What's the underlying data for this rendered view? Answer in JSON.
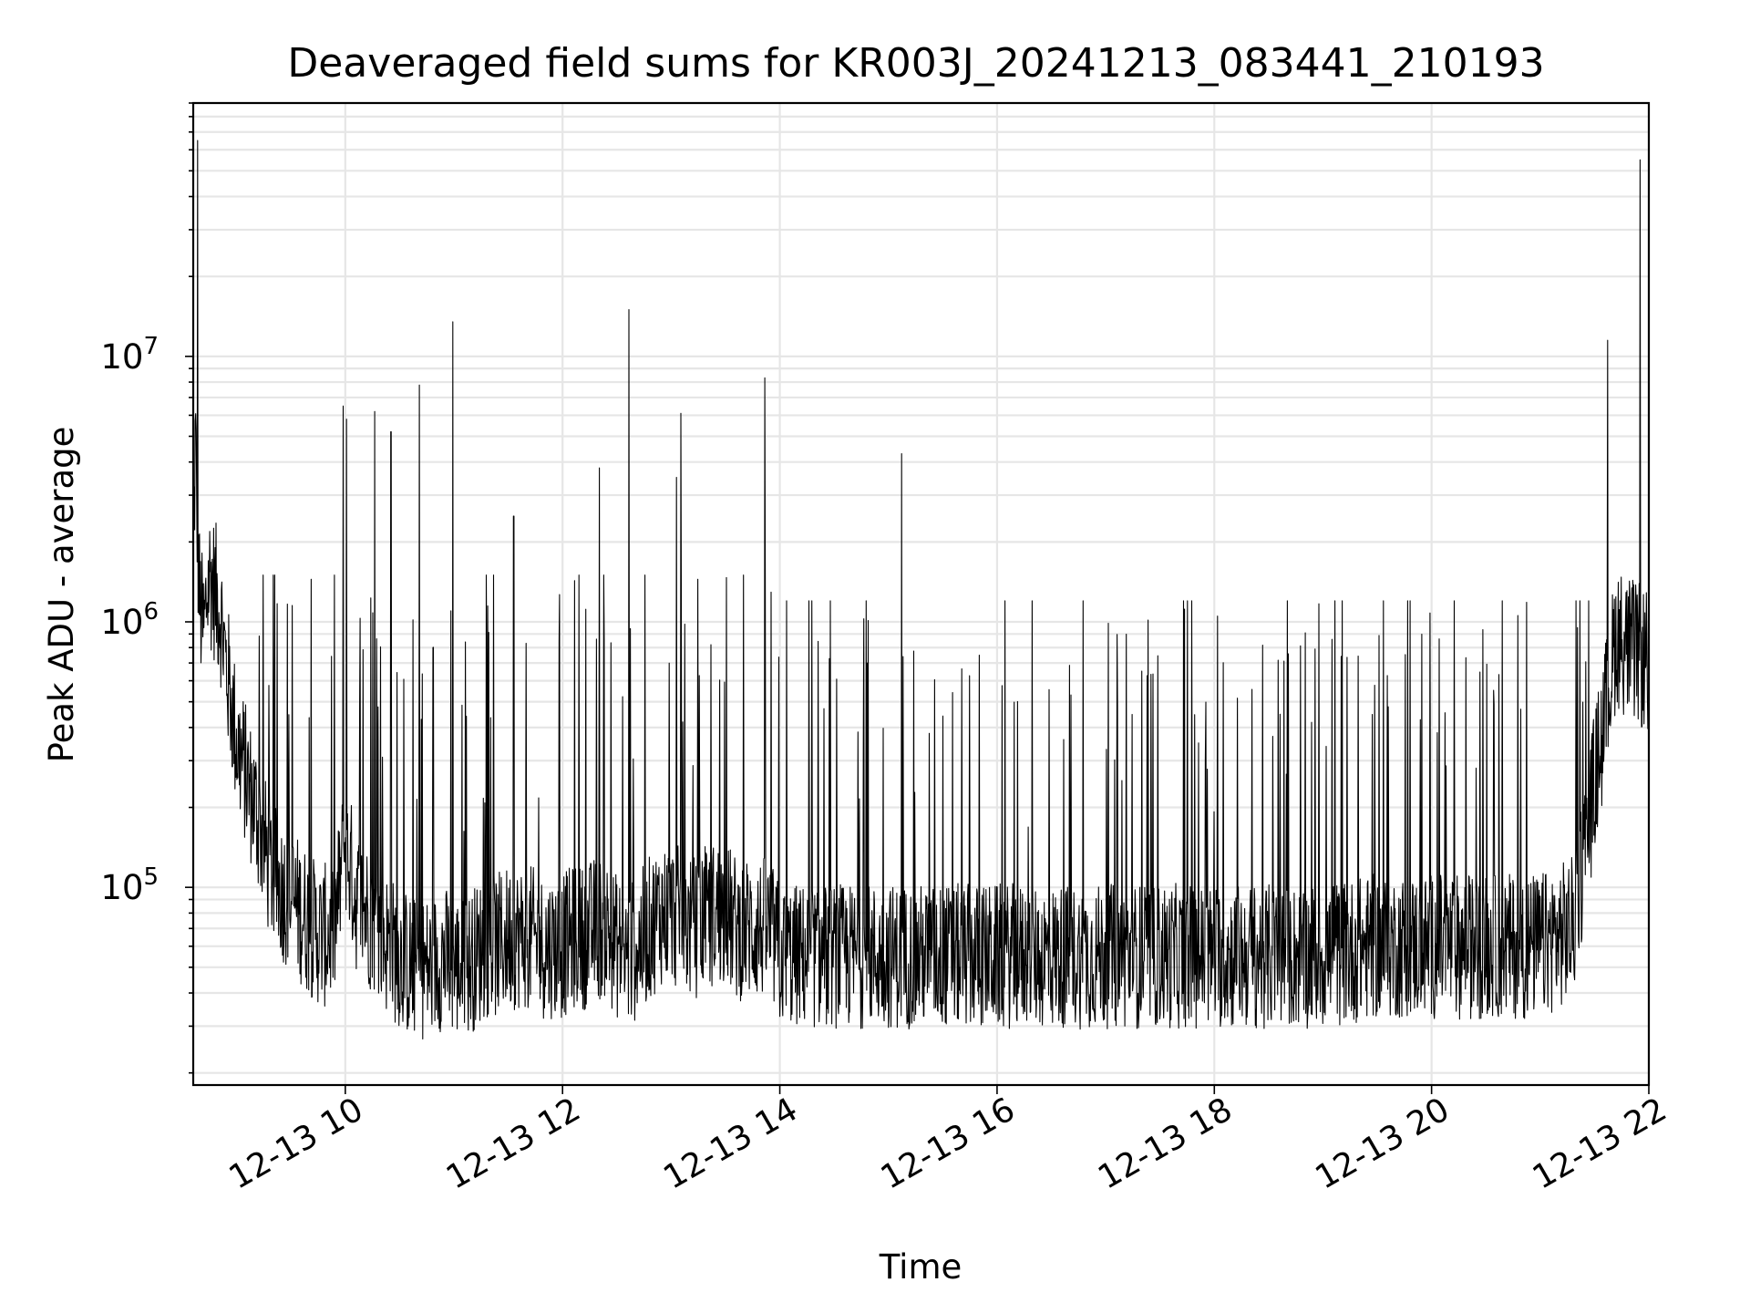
{
  "chart_data": {
    "type": "line",
    "title": "Deaveraged field sums for KR003J_20241213_083441_210193",
    "xlabel": "Time",
    "ylabel": "Peak ADU - average",
    "yscale": "log",
    "ylim": [
      18000,
      90000000
    ],
    "xlim_hours": [
      8.6,
      22.0
    ],
    "grid": true,
    "legend": "none",
    "line_color": "#000000",
    "x_ticks": [
      {
        "hour": 10,
        "label": "12-13 10"
      },
      {
        "hour": 12,
        "label": "12-13 12"
      },
      {
        "hour": 14,
        "label": "12-13 14"
      },
      {
        "hour": 16,
        "label": "12-13 16"
      },
      {
        "hour": 18,
        "label": "12-13 18"
      },
      {
        "hour": 20,
        "label": "12-13 20"
      },
      {
        "hour": 22,
        "label": "12-13 22"
      }
    ],
    "y_ticks": [
      {
        "value": 100000,
        "base": "10",
        "exp": "5"
      },
      {
        "value": 1000000,
        "base": "10",
        "exp": "6"
      },
      {
        "value": 10000000,
        "base": "10",
        "exp": "7"
      }
    ],
    "series": [
      {
        "x_hours": [
          8.6,
          8.62,
          8.64,
          8.66,
          8.68,
          8.7,
          8.72,
          8.75,
          8.8,
          8.85,
          8.9,
          8.95,
          9.0,
          9.05,
          9.1,
          9.2,
          9.3,
          9.4,
          9.5,
          9.6,
          9.7,
          9.8,
          9.9,
          10.0,
          10.1,
          10.2,
          10.3,
          10.4,
          10.5,
          10.6,
          10.7,
          10.8,
          10.9,
          11.0,
          11.1,
          11.2,
          11.3,
          11.4,
          11.5,
          11.6,
          11.7,
          11.8,
          11.9,
          12.0,
          12.1,
          12.2,
          12.3,
          12.4,
          12.5,
          12.6,
          12.7,
          12.8,
          12.9,
          13.0,
          13.1,
          13.2,
          13.3,
          13.4,
          13.5,
          13.6,
          13.7,
          13.8,
          13.9,
          14.0,
          14.2,
          14.5,
          15.0,
          15.5,
          16.0,
          16.5,
          17.0,
          17.5,
          18.0,
          18.5,
          19.0,
          19.5,
          20.0,
          20.5,
          21.0,
          21.3,
          21.4,
          21.5,
          21.6,
          21.7,
          21.8,
          21.9,
          22.0
        ],
        "y_baseline": [
          1500000,
          5000000,
          2000000,
          1200000,
          1000000,
          900000,
          1200000,
          1500000,
          1300000,
          1100000,
          700000,
          500000,
          350000,
          300000,
          250000,
          180000,
          120000,
          100000,
          90000,
          80000,
          70000,
          65000,
          70000,
          150000,
          90000,
          80000,
          70000,
          60000,
          55000,
          50000,
          50000,
          50000,
          55000,
          50000,
          50000,
          55000,
          60000,
          60000,
          65000,
          65000,
          65000,
          60000,
          60000,
          60000,
          65000,
          65000,
          70000,
          70000,
          60000,
          55000,
          60000,
          70000,
          80000,
          80000,
          75000,
          70000,
          75000,
          80000,
          80000,
          70000,
          70000,
          70000,
          70000,
          55000,
          55000,
          55000,
          55000,
          55000,
          55000,
          55000,
          55000,
          55000,
          55000,
          55000,
          55000,
          60000,
          60000,
          60000,
          60000,
          70000,
          130000,
          250000,
          450000,
          900000,
          800000,
          750000,
          700000
        ],
        "peaks": [
          {
            "hour": 8.64,
            "value": 65000000
          },
          {
            "hour": 9.98,
            "value": 6500000
          },
          {
            "hour": 10.01,
            "value": 5800000
          },
          {
            "hour": 10.27,
            "value": 6200000
          },
          {
            "hour": 10.42,
            "value": 5200000
          },
          {
            "hour": 10.68,
            "value": 7800000
          },
          {
            "hour": 10.99,
            "value": 13500000
          },
          {
            "hour": 11.55,
            "value": 2500000
          },
          {
            "hour": 12.34,
            "value": 3800000
          },
          {
            "hour": 12.61,
            "value": 15000000
          },
          {
            "hour": 13.05,
            "value": 3500000
          },
          {
            "hour": 13.09,
            "value": 6100000
          },
          {
            "hour": 13.86,
            "value": 8300000
          },
          {
            "hour": 15.12,
            "value": 4300000
          },
          {
            "hour": 21.62,
            "value": 11500000
          },
          {
            "hour": 21.92,
            "value": 55000000
          }
        ]
      }
    ]
  }
}
